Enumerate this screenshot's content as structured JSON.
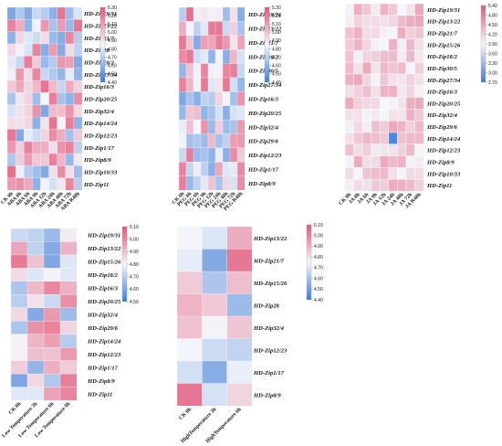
{
  "colors": {
    "low": "#3f7bd6",
    "mid": "#f4f6fb",
    "high": "#e3577a"
  },
  "chart_data": [
    {
      "type": "heatmap",
      "genes": [
        "HD-Zip19/31",
        "HD-Zip13/22",
        "HD-Zip21/7",
        "HD-Zip28",
        "HD-Zip18/2",
        "HD-Zip27/34",
        "HD-Zip16/3",
        "HD-Zip20/25",
        "HD-Zip32/4",
        "HD-Zip14/24",
        "HD-Zip12/23",
        "HD-Zip1/17",
        "HD-Zip8/9",
        "HD-Zip10/33",
        "HD-Zip11"
      ],
      "conditions": [
        "CK 0h",
        "ABA 0h",
        "ABA 6h",
        "ABA 9h",
        "ABA 12h",
        "ABA 24h",
        "ABA 48h",
        "ABA 72h",
        "ABA R48h"
      ],
      "colorbar_ticks": [
        "5.30",
        "5.20",
        "5.10",
        "5.00",
        "4.90",
        "4.80",
        "4.70",
        "4.60",
        "4.50",
        "4.40"
      ],
      "vmin": 4.4,
      "vmax": 5.3
    },
    {
      "type": "heatmap",
      "genes": [
        "HD-Zip19/31",
        "HD-Zip13/22",
        "HD-Zip21/7",
        "HD-Zip18/2",
        "HD-Zip30/5",
        "HD-Zip27/34",
        "HD-Zip16/3",
        "HD-Zip20/25",
        "HD-Zip32/4",
        "HD-Zip29/6",
        "HD-Zip12/23",
        "HD-Zip1/17",
        "HD-Zip8/9"
      ],
      "conditions": [
        "CK 0h",
        "PEG 0h",
        "PEG 6h",
        "PEG 9h",
        "PEG 12h",
        "PEG 24h",
        "PEG 48h",
        "PEG 72h",
        "PEG R48h"
      ],
      "colorbar_ticks": [
        "5.30",
        "5.20",
        "5.10",
        "5.00",
        "4.90",
        "4.80",
        "4.70",
        "4.60",
        "4.50",
        "4.40"
      ],
      "vmin": 4.4,
      "vmax": 5.3
    },
    {
      "type": "heatmap",
      "genes": [
        "HD-Zip19/31",
        "HD-Zip13/22",
        "HD-Zip21/7",
        "HD-Zip15/26",
        "HD-Zip18/2",
        "HD-Zip30/5",
        "HD-Zip27/34",
        "HD-Zip16/3",
        "HD-Zip20/25",
        "HD-Zip32/4",
        "HD-Zip29/6",
        "HD-Zip14/24",
        "HD-Zip12/23",
        "HD-Zip8/9",
        "HD-Zip10/33",
        "HD-Zip11"
      ],
      "conditions": [
        "CK 0h",
        "JA 0h",
        "JA 6h",
        "JA 9h",
        "JA 12h",
        "JA 24h",
        "JA 48h",
        "JA 72h",
        "JA R48h"
      ],
      "colorbar_ticks": [
        "5.40",
        "4.80",
        "4.50",
        "4.20",
        "3.90",
        "3.60",
        "3.30",
        "3.00",
        "2.70"
      ],
      "vmin": 2.7,
      "vmax": 5.4
    },
    {
      "type": "heatmap",
      "genes": [
        "HD-Zip19/31",
        "HD-Zip13/22",
        "HD-Zip15/26",
        "HD-Zip18/2",
        "HD-Zip16/3",
        "HD-Zip20/25",
        "HD-Zip32/4",
        "HD-Zip29/6",
        "HD-Zip14/24",
        "HD-Zip12/23",
        "HD-Zip1/17",
        "HD-Zip8/9",
        "HD-Zip11"
      ],
      "conditions": [
        "CK 0h",
        "Low Temperature 3h",
        "Low Temperature 6h",
        "Low Temperature 9h"
      ],
      "colorbar_ticks": [
        "5.10",
        "5.00",
        "4.90",
        "4.80",
        "4.70",
        "4.60",
        "4.50"
      ],
      "vmin": 4.5,
      "vmax": 5.1
    },
    {
      "type": "heatmap",
      "genes": [
        "HD-Zip13/22",
        "HD-Zip21/7",
        "HD-Zip15/26",
        "HD-Zip28",
        "HD-Zip32/4",
        "HD-Zip12/23",
        "HD-Zip1/17",
        "HD-Zip8/9"
      ],
      "conditions": [
        "CK 0h",
        "HighTemperature 3h",
        "HighTemperature 6h"
      ],
      "colorbar_ticks": [
        "5.10",
        "5.00",
        "4.90",
        "4.80",
        "4.70",
        "4.60",
        "4.50",
        "4.40"
      ],
      "vmin": 4.4,
      "vmax": 5.1
    }
  ]
}
